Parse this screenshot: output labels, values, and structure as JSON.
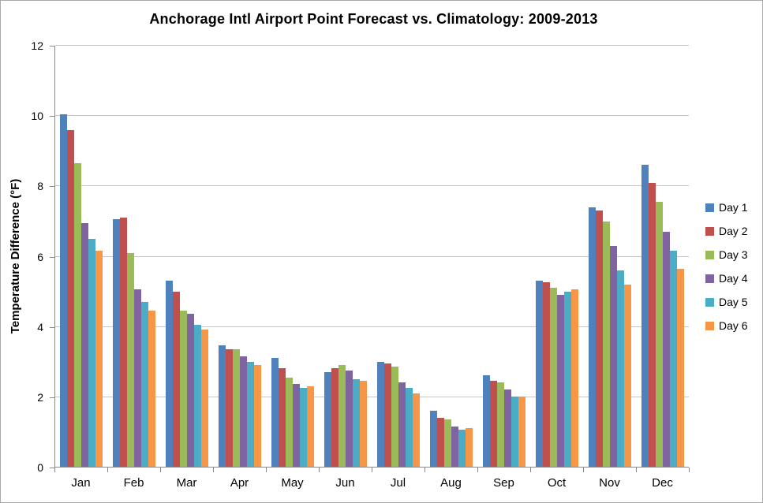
{
  "chart_data": {
    "type": "bar",
    "title": "Anchorage Intl Airport Point Forecast vs. Climatology: 2009-2013",
    "xlabel": "",
    "ylabel": "Temperature Difference (°F)",
    "categories": [
      "Jan",
      "Feb",
      "Mar",
      "Apr",
      "May",
      "Jun",
      "Jul",
      "Aug",
      "Sep",
      "Oct",
      "Nov",
      "Dec"
    ],
    "ylim": [
      0,
      12
    ],
    "yticks": [
      0,
      2,
      4,
      6,
      8,
      10,
      12
    ],
    "grid": true,
    "legend_position": "right",
    "series": [
      {
        "name": "Day 1",
        "color": "#4F81BD",
        "values": [
          10.05,
          7.05,
          5.3,
          3.45,
          3.1,
          2.7,
          3.0,
          1.6,
          2.6,
          5.3,
          7.4,
          8.6
        ]
      },
      {
        "name": "Day 2",
        "color": "#C0504D",
        "values": [
          9.6,
          7.1,
          5.0,
          3.35,
          2.8,
          2.8,
          2.95,
          1.4,
          2.45,
          5.25,
          7.3,
          8.1
        ]
      },
      {
        "name": "Day 3",
        "color": "#9BBB59",
        "values": [
          8.65,
          6.1,
          4.45,
          3.35,
          2.55,
          2.9,
          2.85,
          1.35,
          2.4,
          5.1,
          7.0,
          7.55
        ]
      },
      {
        "name": "Day 4",
        "color": "#8064A2",
        "values": [
          6.95,
          5.05,
          4.35,
          3.15,
          2.35,
          2.75,
          2.4,
          1.15,
          2.2,
          4.9,
          6.3,
          6.7
        ]
      },
      {
        "name": "Day 5",
        "color": "#4BACC6",
        "values": [
          6.5,
          4.7,
          4.05,
          3.0,
          2.25,
          2.5,
          2.25,
          1.05,
          2.0,
          5.0,
          5.6,
          6.15
        ]
      },
      {
        "name": "Day 6",
        "color": "#F79646",
        "values": [
          6.15,
          4.45,
          3.9,
          2.9,
          2.3,
          2.45,
          2.1,
          1.1,
          2.0,
          5.05,
          5.2,
          5.65
        ]
      }
    ],
    "colors": {
      "grid": "#C6C6C6",
      "axis": "#898989",
      "background": "#FFFFFF",
      "title_text": "#000000"
    }
  }
}
